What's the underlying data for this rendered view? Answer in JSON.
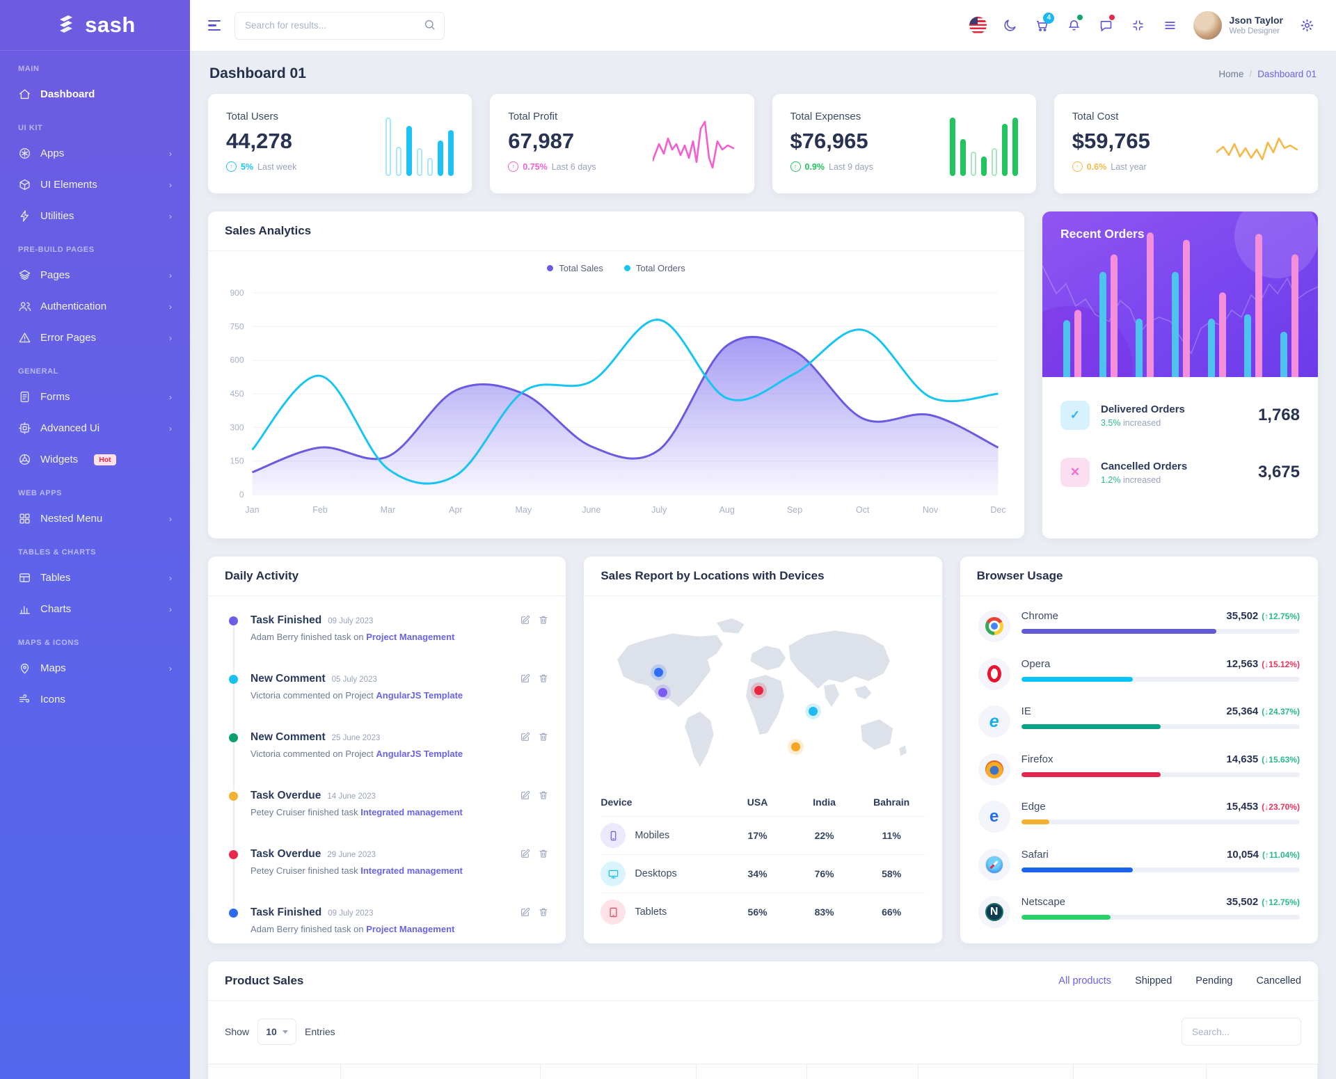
{
  "theme": {
    "primary": "#6a62e8",
    "cyan": "#18c5f2",
    "pink": "#f25fd0",
    "green": "#21c45d",
    "orange": "#f5b849",
    "danger": "#f0305a",
    "success": "#27b98c"
  },
  "sidebar": {
    "logo_text": "sash",
    "sections": [
      {
        "label": "MAIN",
        "items": [
          {
            "label": "Dashboard",
            "icon": "home-icon",
            "active": true,
            "chevron": false
          }
        ]
      },
      {
        "label": "UI KIT",
        "items": [
          {
            "label": "Apps",
            "icon": "apps-icon",
            "chevron": true
          },
          {
            "label": "UI Elements",
            "icon": "cube-icon",
            "chevron": true
          },
          {
            "label": "Utilities",
            "icon": "bolt-icon",
            "chevron": true
          }
        ]
      },
      {
        "label": "PRE-BUILD PAGES",
        "items": [
          {
            "label": "Pages",
            "icon": "layers-icon",
            "chevron": true
          },
          {
            "label": "Authentication",
            "icon": "users-icon",
            "chevron": true
          },
          {
            "label": "Error Pages",
            "icon": "warning-icon",
            "chevron": true
          }
        ]
      },
      {
        "label": "GENERAL",
        "items": [
          {
            "label": "Forms",
            "icon": "document-icon",
            "chevron": true
          },
          {
            "label": "Advanced Ui",
            "icon": "chip-icon",
            "chevron": true
          },
          {
            "label": "Widgets",
            "icon": "widgets-icon",
            "chevron": false,
            "badge": "Hot"
          }
        ]
      },
      {
        "label": "WEB APPS",
        "items": [
          {
            "label": "Nested Menu",
            "icon": "grid-icon",
            "chevron": true
          }
        ]
      },
      {
        "label": "TABLES & CHARTS",
        "items": [
          {
            "label": "Tables",
            "icon": "table-icon",
            "chevron": true
          },
          {
            "label": "Charts",
            "icon": "chart-bars-icon",
            "chevron": true
          }
        ]
      },
      {
        "label": "MAPS & ICONS",
        "items": [
          {
            "label": "Maps",
            "icon": "map-pin-icon",
            "chevron": true
          },
          {
            "label": "Icons",
            "icon": "feather-icon",
            "chevron": false
          }
        ]
      }
    ]
  },
  "header": {
    "search_placeholder": "Search for results...",
    "cart_badge": "4",
    "user": {
      "name": "Json Taylor",
      "role": "Web Designer"
    }
  },
  "page": {
    "title": "Dashboard 01",
    "breadcrumb": {
      "home": "Home",
      "current": "Dashboard 01"
    }
  },
  "stats": [
    {
      "label": "Total Users",
      "value": "44,278",
      "delta": "5%",
      "period": "Last week",
      "color": "#1ec3f5",
      "spark_type": "bars",
      "spark": [
        95,
        48,
        82,
        45,
        30,
        58,
        75
      ],
      "spark_variant": [
        "light",
        "light",
        "solid",
        "light",
        "light",
        "solid",
        "solid"
      ]
    },
    {
      "label": "Total Profit",
      "value": "67,987",
      "delta": "0.75%",
      "period": "Last 6 days",
      "color": "#f25fd0",
      "spark_type": "line"
    },
    {
      "label": "Total Expenses",
      "value": "$76,965",
      "delta": "0.9%",
      "period": "Last 9 days",
      "color": "#21c45d",
      "spark_type": "bars",
      "spark": [
        95,
        60,
        40,
        32,
        45,
        85,
        95
      ],
      "spark_variant": [
        "solid",
        "solid",
        "light",
        "solid",
        "light",
        "solid",
        "solid"
      ]
    },
    {
      "label": "Total Cost",
      "value": "$59,765",
      "delta": "0.6%",
      "period": "Last year",
      "color": "#f5b849",
      "spark_type": "line"
    }
  ],
  "sales_analytics": {
    "title": "Sales Analytics",
    "chart_data": {
      "type": "line",
      "x": [
        "Jan",
        "Feb",
        "Mar",
        "Apr",
        "May",
        "June",
        "July",
        "Aug",
        "Sep",
        "Oct",
        "Nov",
        "Dec"
      ],
      "series": [
        {
          "name": "Total Sales",
          "color": "#6a5ae0",
          "fill": true,
          "values": [
            100,
            210,
            170,
            465,
            450,
            215,
            200,
            665,
            640,
            340,
            355,
            210
          ]
        },
        {
          "name": "Total Orders",
          "color": "#18c5f2",
          "fill": false,
          "values": [
            200,
            530,
            115,
            85,
            460,
            505,
            780,
            430,
            540,
            735,
            435,
            450
          ]
        }
      ],
      "ylim": [
        0,
        900
      ],
      "yticks": [
        900,
        750,
        600,
        450,
        300,
        150,
        0
      ],
      "grid": true,
      "legend_position": "top-center"
    }
  },
  "recent_orders": {
    "title": "Recent Orders",
    "chart_data": {
      "type": "bar",
      "series": [
        {
          "name": "orders-cyan",
          "color": "#4ec3f0",
          "values": [
            39,
            72,
            40,
            72,
            40,
            43,
            31
          ]
        },
        {
          "name": "orders-pink",
          "color": "#f48fdb",
          "values": [
            46,
            84,
            99,
            94,
            58,
            98,
            84
          ]
        }
      ]
    },
    "items": [
      {
        "title": "Delivered Orders",
        "delta": "3.5%",
        "delta_suffix": "increased",
        "value": "1,768",
        "icon": "check-icon",
        "tint": "cyan"
      },
      {
        "title": "Cancelled Orders",
        "delta": "1.2%",
        "delta_suffix": "increased",
        "value": "3,675",
        "icon": "cross-icon",
        "tint": "pink"
      }
    ]
  },
  "daily_activity": {
    "title": "Daily Activity",
    "items": [
      {
        "dot": "#6c5ce7",
        "title": "Task Finished",
        "date": "09 July 2023",
        "text": "Adam Berry finished task on",
        "link": "Project Management"
      },
      {
        "dot": "#17c1f4",
        "title": "New Comment",
        "date": "05 July 2023",
        "text": "Victoria commented on Project",
        "link": "AngularJS Template"
      },
      {
        "dot": "#0f9f6e",
        "title": "New Comment",
        "date": "25 June 2023",
        "text": "Victoria commented on Project",
        "link": "AngularJS Template"
      },
      {
        "dot": "#f3b231",
        "title": "Task Overdue",
        "date": "14 June 2023",
        "text": "Petey Cruiser finished task",
        "link": "Integrated management"
      },
      {
        "dot": "#e8274b",
        "title": "Task Overdue",
        "date": "29 June 2023",
        "text": "Petey Cruiser finished task",
        "link": "Integrated management"
      },
      {
        "dot": "#2d6bf0",
        "title": "Task Finished",
        "date": "09 July 2023",
        "text": "Adam Berry finished task on",
        "link": "Project Management"
      }
    ]
  },
  "sales_report": {
    "title": "Sales Report by Locations with Devices",
    "map_markers": [
      {
        "name": "canada",
        "x": 19.5,
        "y": 37,
        "color": "#2e6df6"
      },
      {
        "name": "usa",
        "x": 20.7,
        "y": 47.5,
        "color": "#7c5cf0"
      },
      {
        "name": "europe",
        "x": 47.6,
        "y": 46.5,
        "color": "#e8263d"
      },
      {
        "name": "india",
        "x": 62.8,
        "y": 57,
        "color": "#1fb9f5"
      },
      {
        "name": "indian-ocean",
        "x": 57.8,
        "y": 75.5,
        "color": "#f5a623"
      }
    ],
    "table": {
      "headers": [
        "Device",
        "USA",
        "India",
        "Bahrain"
      ],
      "rows": [
        {
          "device": "Mobiles",
          "icon": "mobile-icon",
          "icon_bg": "#ece9fc",
          "icon_color": "#6a5fe6",
          "usa": "17%",
          "india": "22%",
          "bahrain": "11%"
        },
        {
          "device": "Desktops",
          "icon": "desktop-icon",
          "icon_bg": "#d9f4fd",
          "icon_color": "#18b9f0",
          "usa": "34%",
          "india": "76%",
          "bahrain": "58%"
        },
        {
          "device": "Tablets",
          "icon": "tablet-icon",
          "icon_bg": "#fde3e7",
          "icon_color": "#e8425f",
          "usa": "56%",
          "india": "83%",
          "bahrain": "66%"
        }
      ]
    }
  },
  "browser_usage": {
    "title": "Browser Usage",
    "rows": [
      {
        "name": "Chrome",
        "value": "35,502",
        "delta": "(↑12.75%)",
        "delta_color": "#27b98c",
        "bar_color": "#6159d2",
        "bar_pct": 70
      },
      {
        "name": "Opera",
        "value": "12,563",
        "delta": "(↓15.12%)",
        "delta_color": "#f0305a",
        "bar_color": "#06c4f7",
        "bar_pct": 40
      },
      {
        "name": "IE",
        "value": "25,364",
        "delta": "(↓24.37%)",
        "delta_color": "#27b98c",
        "bar_color": "#0aa187",
        "bar_pct": 50
      },
      {
        "name": "Firefox",
        "value": "14,635",
        "delta": "(↓15.63%)",
        "delta_color": "#27b98c",
        "bar_color": "#e0254e",
        "bar_pct": 50
      },
      {
        "name": "Edge",
        "value": "15,453",
        "delta": "(↓23.70%)",
        "delta_color": "#f0305a",
        "bar_color": "#f5b031",
        "bar_pct": 10
      },
      {
        "name": "Safari",
        "value": "10,054",
        "delta": "(↑11.04%)",
        "delta_color": "#27b98c",
        "bar_color": "#1a63ea",
        "bar_pct": 40
      },
      {
        "name": "Netscape",
        "value": "35,502",
        "delta": "(↑12.75%)",
        "delta_color": "#27b98c",
        "bar_color": "#2ad069",
        "bar_pct": 32
      }
    ]
  },
  "product_sales": {
    "title": "Product Sales",
    "tabs": [
      {
        "label": "All products",
        "active": true
      },
      {
        "label": "Shipped",
        "active": false
      },
      {
        "label": "Pending",
        "active": false
      },
      {
        "label": "Cancelled",
        "active": false
      }
    ],
    "show_label": "Show",
    "entries_value": "10",
    "entries_label": "Entries",
    "search_placeholder": "Search..."
  }
}
